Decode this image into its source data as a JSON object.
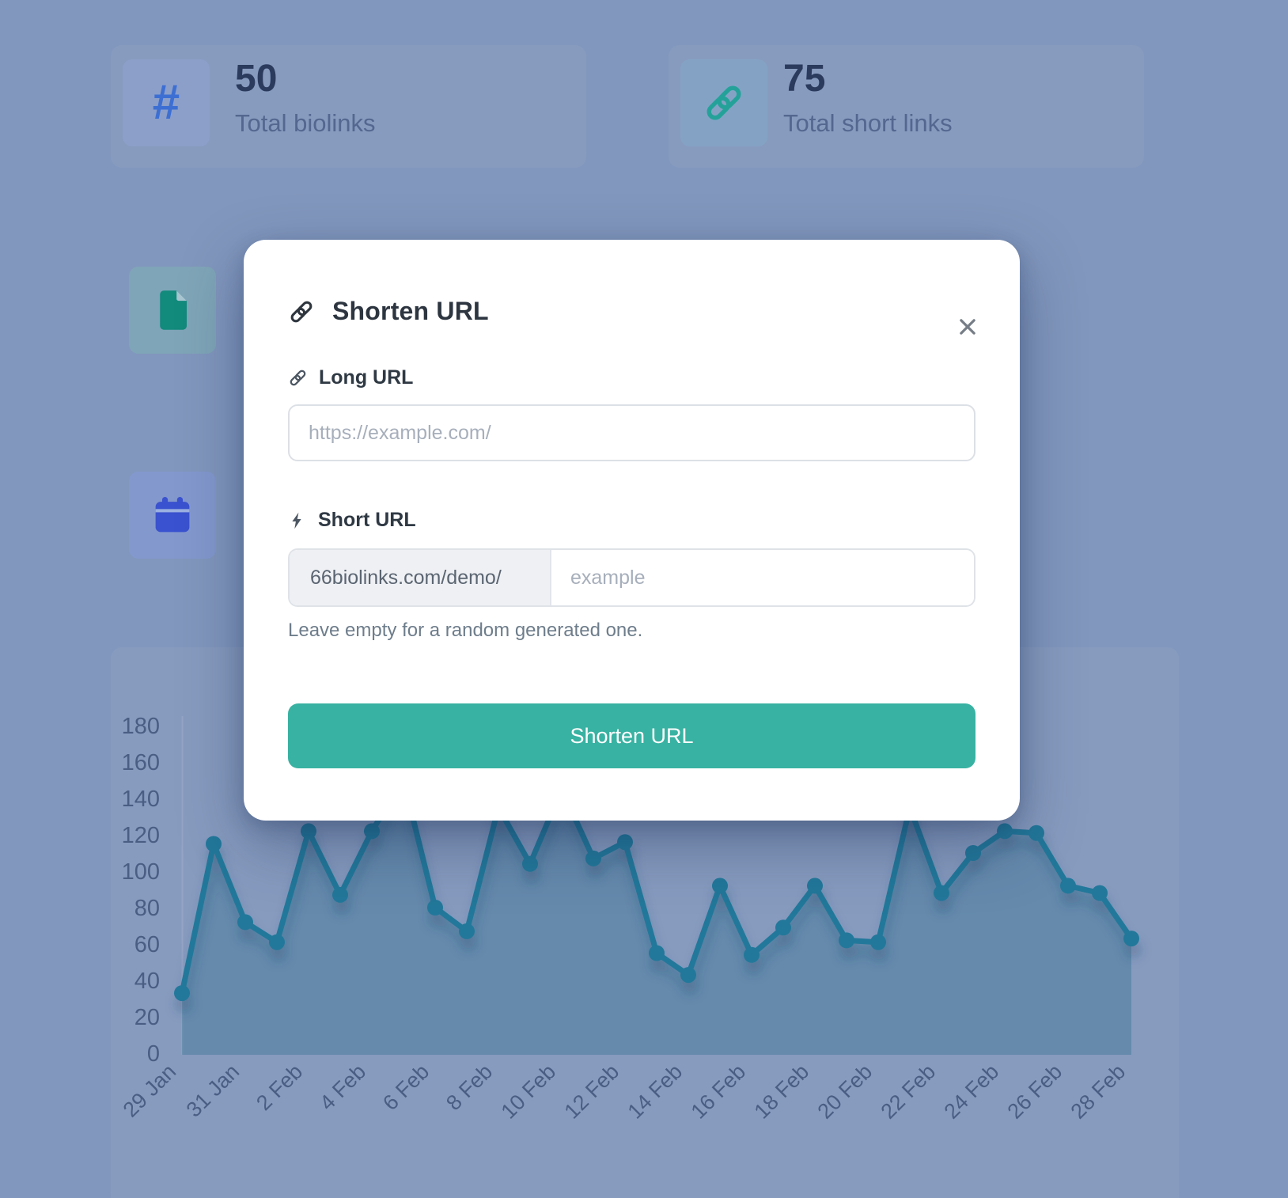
{
  "page_bg": "#8297bd",
  "backdrop": {
    "stat_cards": [
      {
        "icon": "hash-icon",
        "icon_glyph": "#",
        "icon_color": "#3d6fd3",
        "tile_bg": "#8b9fc9",
        "value": "50",
        "label": "Total biolinks"
      },
      {
        "icon": "link-icon",
        "icon_color": "#24a29a",
        "tile_bg": "#84a3c4",
        "value": "75",
        "label": "Total short links"
      }
    ],
    "partial_tiles": [
      {
        "icon": "file-icon",
        "icon_color": "#128a7c",
        "tile_bg": "#7fa5b8"
      },
      {
        "icon": "calendar-icon",
        "icon_color": "#3a52cf",
        "tile_bg": "#8398cd"
      }
    ]
  },
  "modal": {
    "title": "Shorten URL",
    "title_icon": "link-icon",
    "close_icon": "close-icon",
    "long_url": {
      "label": "Long URL",
      "placeholder": "https://example.com/",
      "value": ""
    },
    "short_url": {
      "label": "Short URL",
      "prefix": "66biolinks.com/demo/",
      "placeholder": "example",
      "value": "",
      "hint": "Leave empty for a random generated one."
    },
    "submit_label": "Shorten URL",
    "accent_color": "#38b2a2"
  },
  "chart_data": {
    "type": "line",
    "title": "",
    "xlabel": "",
    "ylabel": "",
    "categories": [
      "29 Jan",
      "30 Jan",
      "31 Jan",
      "1 Feb",
      "2 Feb",
      "3 Feb",
      "4 Feb",
      "5 Feb",
      "6 Feb",
      "7 Feb",
      "8 Feb",
      "9 Feb",
      "10 Feb",
      "11 Feb",
      "12 Feb",
      "13 Feb",
      "14 Feb",
      "15 Feb",
      "16 Feb",
      "17 Feb",
      "18 Feb",
      "19 Feb",
      "20 Feb",
      "21 Feb",
      "22 Feb",
      "23 Feb",
      "24 Feb",
      "25 Feb",
      "26 Feb",
      "27 Feb",
      "28 Feb"
    ],
    "values": [
      33,
      115,
      72,
      61,
      122,
      87,
      122,
      150,
      80,
      67,
      135,
      104,
      145,
      107,
      116,
      55,
      43,
      92,
      54,
      69,
      92,
      62,
      61,
      135,
      88,
      110,
      122,
      121,
      92,
      88,
      63
    ],
    "x_tick_labels": [
      "29 Jan",
      "31 Jan",
      "2 Feb",
      "4 Feb",
      "6 Feb",
      "8 Feb",
      "10 Feb",
      "12 Feb",
      "14 Feb",
      "16 Feb",
      "18 Feb",
      "20 Feb",
      "22 Feb",
      "24 Feb",
      "26 Feb",
      "28 Feb"
    ],
    "x_tick_every": 2,
    "yticks": [
      0,
      20,
      40,
      60,
      80,
      100,
      120,
      140,
      160,
      180
    ],
    "ylim": [
      0,
      180
    ],
    "grid": false,
    "legend": false,
    "markers": true,
    "occluded_by_modal_point_indices": [
      7,
      10,
      12,
      23
    ],
    "line_color": "#21789a",
    "fill_color": "rgba(23,98,128,0.30)",
    "axis_label_color": "#4a5d83",
    "axis_line_color": "#9dadca"
  }
}
